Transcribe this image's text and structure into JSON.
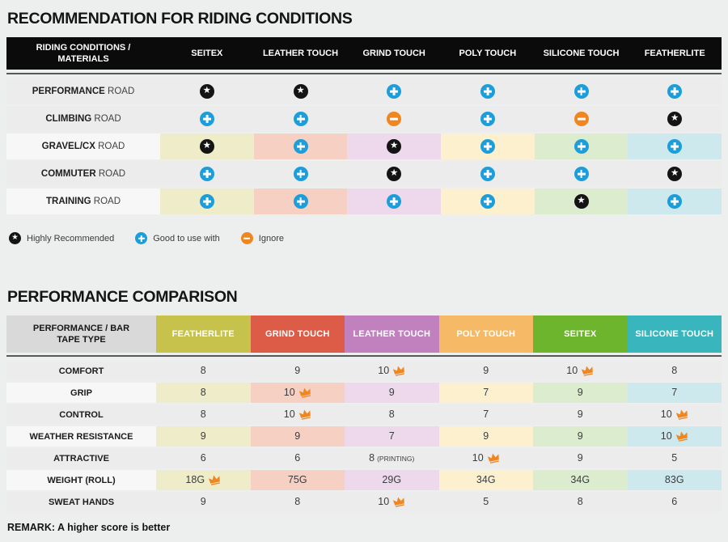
{
  "page": {
    "background": "#edeeee"
  },
  "table1": {
    "title": "RECOMMENDATION FOR RIDING CONDITIONS",
    "header_label": "RIDING CONDITIONS / MATERIALS",
    "columns": [
      "SEITEX",
      "LEATHER TOUCH",
      "GRIND TOUCH",
      "POLY TOUCH",
      "SILICONE TOUCH",
      "FEATHERLITE"
    ],
    "header_bg": "#0b0b0b",
    "row_bg": "#ececec",
    "label_tint": "#f7f7f7",
    "tints": [
      "#efecca",
      "#f7d0c4",
      "#eed9ec",
      "#fdf0cf",
      "#dcedcf",
      "#cde9ed"
    ],
    "icon_colors": {
      "star": "#141414",
      "plus": "#1b9ed9",
      "minus": "#f0861f"
    },
    "rows": [
      {
        "label_bold": "PERFORMANCE",
        "label_rest": "ROAD",
        "tinted": false,
        "cells": [
          "star",
          "star",
          "plus",
          "plus",
          "plus",
          "plus"
        ]
      },
      {
        "label_bold": "CLIMBING",
        "label_rest": "ROAD",
        "tinted": false,
        "cells": [
          "plus",
          "plus",
          "minus",
          "plus",
          "minus",
          "star"
        ]
      },
      {
        "label_bold": "GRAVEL/CX",
        "label_rest": "ROAD",
        "tinted": true,
        "cells": [
          "star",
          "plus",
          "star",
          "plus",
          "plus",
          "plus"
        ]
      },
      {
        "label_bold": "COMMUTER",
        "label_rest": "ROAD",
        "tinted": false,
        "cells": [
          "plus",
          "plus",
          "star",
          "plus",
          "plus",
          "star"
        ]
      },
      {
        "label_bold": "TRAINING",
        "label_rest": "ROAD",
        "tinted": true,
        "cells": [
          "plus",
          "plus",
          "plus",
          "plus",
          "star",
          "plus"
        ]
      }
    ],
    "legend": [
      {
        "icon": "star",
        "label": "Highly Recommended"
      },
      {
        "icon": "plus",
        "label": "Good to use with"
      },
      {
        "icon": "minus",
        "label": "Ignore"
      }
    ]
  },
  "table2": {
    "title": "PERFORMANCE COMPARISON",
    "header_label": "PERFORMANCE / BAR TAPE TYPE",
    "header_label_bg": "#d9d9d9",
    "row_bg": "#ececec",
    "label_tint": "#f7f7f7",
    "crown_color": "#f0861f",
    "columns": [
      {
        "name": "FEATHERLITE",
        "color": "#c6c24b",
        "tint": "#efecca"
      },
      {
        "name": "GRIND TOUCH",
        "color": "#dc5c48",
        "tint": "#f7d0c4"
      },
      {
        "name": "LEATHER TOUCH",
        "color": "#c181be",
        "tint": "#eed9ec"
      },
      {
        "name": "POLY TOUCH",
        "color": "#f6b966",
        "tint": "#fdf0cf"
      },
      {
        "name": "SEITEX",
        "color": "#6cb52d",
        "tint": "#dcedcf"
      },
      {
        "name": "SILICONE TOUCH",
        "color": "#38b5bd",
        "tint": "#cde9ed"
      }
    ],
    "rows": [
      {
        "label": "COMFORT",
        "tinted": false,
        "cells": [
          {
            "v": "8"
          },
          {
            "v": "9"
          },
          {
            "v": "10",
            "crown": true
          },
          {
            "v": "9"
          },
          {
            "v": "10",
            "crown": true
          },
          {
            "v": "8"
          }
        ]
      },
      {
        "label": "GRIP",
        "tinted": true,
        "cells": [
          {
            "v": "8"
          },
          {
            "v": "10",
            "crown": true
          },
          {
            "v": "9"
          },
          {
            "v": "7"
          },
          {
            "v": "9"
          },
          {
            "v": "7"
          }
        ]
      },
      {
        "label": "CONTROL",
        "tinted": false,
        "cells": [
          {
            "v": "8"
          },
          {
            "v": "10",
            "crown": true
          },
          {
            "v": "8"
          },
          {
            "v": "7"
          },
          {
            "v": "9"
          },
          {
            "v": "10",
            "crown": true
          }
        ]
      },
      {
        "label": "WEATHER RESISTANCE",
        "tinted": true,
        "cells": [
          {
            "v": "9"
          },
          {
            "v": "9"
          },
          {
            "v": "7"
          },
          {
            "v": "9"
          },
          {
            "v": "9"
          },
          {
            "v": "10",
            "crown": true
          }
        ]
      },
      {
        "label": "ATTRACTIVE",
        "tinted": false,
        "cells": [
          {
            "v": "6"
          },
          {
            "v": "6"
          },
          {
            "v": "8",
            "suffix": "(PRINTING)"
          },
          {
            "v": "10",
            "crown": true
          },
          {
            "v": "9"
          },
          {
            "v": "5"
          }
        ]
      },
      {
        "label": "WEIGHT (ROLL)",
        "tinted": true,
        "cells": [
          {
            "v": "18G",
            "crown": true
          },
          {
            "v": "75G"
          },
          {
            "v": "29G"
          },
          {
            "v": "34G"
          },
          {
            "v": "34G"
          },
          {
            "v": "83G"
          }
        ]
      },
      {
        "label": "SWEAT HANDS",
        "tinted": false,
        "cells": [
          {
            "v": "9"
          },
          {
            "v": "8"
          },
          {
            "v": "10",
            "crown": true
          },
          {
            "v": "5"
          },
          {
            "v": "8"
          },
          {
            "v": "6"
          }
        ]
      }
    ],
    "remark": "REMARK: A higher score is better"
  },
  "chart_data": [
    {
      "type": "table",
      "title": "RECOMMENDATION FOR RIDING CONDITIONS",
      "columns": [
        "SEITEX",
        "LEATHER TOUCH",
        "GRIND TOUCH",
        "POLY TOUCH",
        "SILICONE TOUCH",
        "FEATHERLITE"
      ],
      "rows": [
        "PERFORMANCE ROAD",
        "CLIMBING ROAD",
        "GRAVEL/CX ROAD",
        "COMMUTER ROAD",
        "TRAINING ROAD"
      ],
      "values": [
        [
          "highly-recommended",
          "highly-recommended",
          "good-to-use-with",
          "good-to-use-with",
          "good-to-use-with",
          "good-to-use-with"
        ],
        [
          "good-to-use-with",
          "good-to-use-with",
          "ignore",
          "good-to-use-with",
          "ignore",
          "highly-recommended"
        ],
        [
          "highly-recommended",
          "good-to-use-with",
          "highly-recommended",
          "good-to-use-with",
          "good-to-use-with",
          "good-to-use-with"
        ],
        [
          "good-to-use-with",
          "good-to-use-with",
          "highly-recommended",
          "good-to-use-with",
          "good-to-use-with",
          "highly-recommended"
        ],
        [
          "good-to-use-with",
          "good-to-use-with",
          "good-to-use-with",
          "good-to-use-with",
          "highly-recommended",
          "good-to-use-with"
        ]
      ],
      "legend": [
        "Highly Recommended",
        "Good to use with",
        "Ignore"
      ]
    },
    {
      "type": "table",
      "title": "PERFORMANCE COMPARISON",
      "columns": [
        "FEATHERLITE",
        "GRIND TOUCH",
        "LEATHER TOUCH",
        "POLY TOUCH",
        "SEITEX",
        "SILICONE TOUCH"
      ],
      "rows": [
        "COMFORT",
        "GRIP",
        "CONTROL",
        "WEATHER RESISTANCE",
        "ATTRACTIVE",
        "WEIGHT (ROLL)",
        "SWEAT HANDS"
      ],
      "values": [
        [
          "8",
          "9",
          "10 (best)",
          "9",
          "10 (best)",
          "8"
        ],
        [
          "8",
          "10 (best)",
          "9",
          "7",
          "9",
          "7"
        ],
        [
          "8",
          "10 (best)",
          "8",
          "7",
          "9",
          "10 (best)"
        ],
        [
          "9",
          "9",
          "7",
          "9",
          "9",
          "10 (best)"
        ],
        [
          "6",
          "6",
          "8 (PRINTING)",
          "10 (best)",
          "9",
          "5"
        ],
        [
          "18G (best)",
          "75G",
          "29G",
          "34G",
          "34G",
          "83G"
        ],
        [
          "9",
          "8",
          "10 (best)",
          "5",
          "8",
          "6"
        ]
      ],
      "remark": "REMARK: A higher score is better"
    }
  ]
}
